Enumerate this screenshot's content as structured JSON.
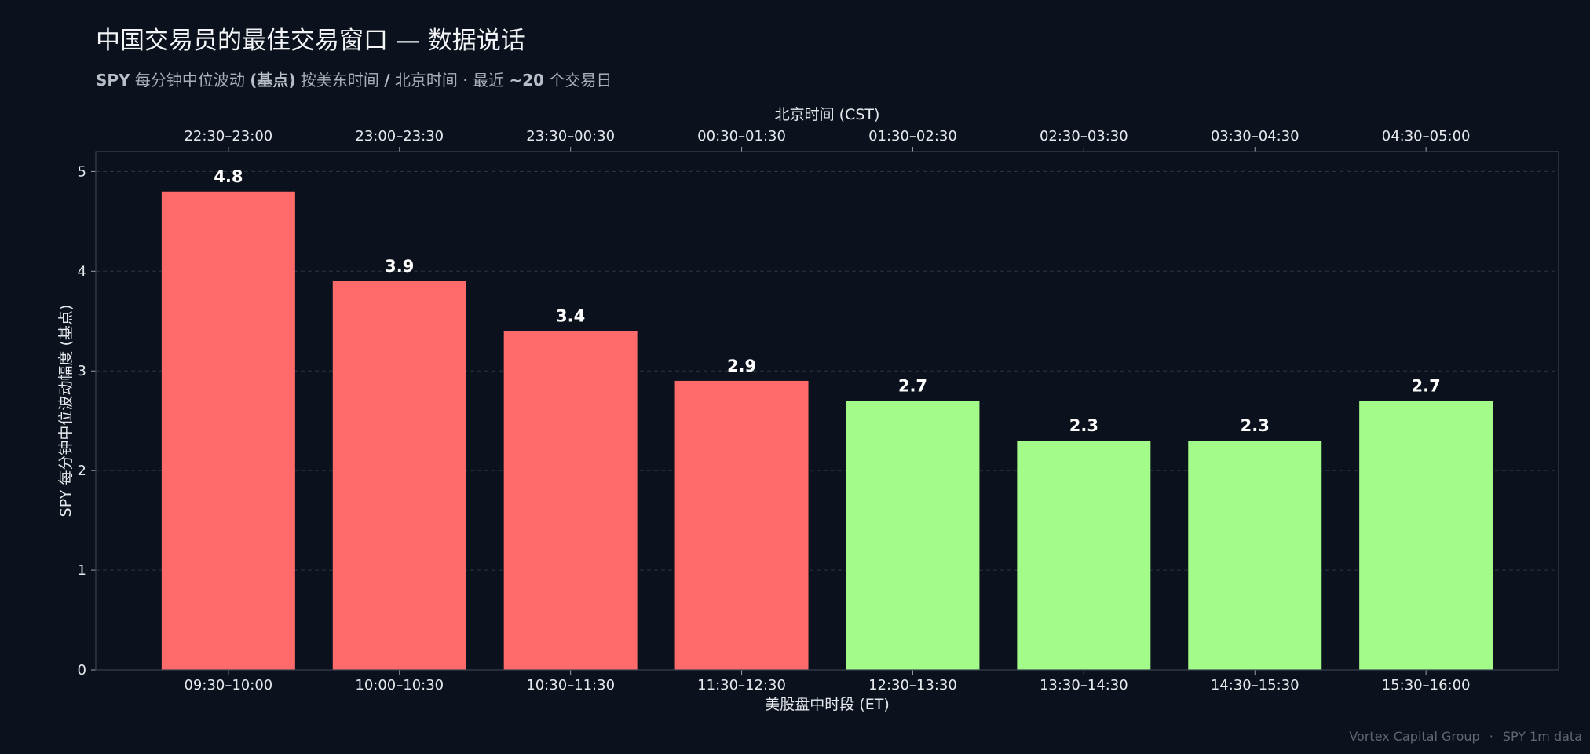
{
  "title": "中国交易员的最佳交易窗口 — 数据说话",
  "subtitle": {
    "ticker": "SPY",
    "text1": " 每分钟中位波动 ",
    "unit": "(基点)",
    "text2": " 按美东时间 ",
    "slash": "/",
    "text3": " 北京时间 · 最近 ",
    "days": "~20",
    "text4": " 个交易日"
  },
  "footer": {
    "source": "Vortex Capital Group",
    "dot": "·",
    "data": "SPY 1m data"
  },
  "colors": {
    "high": "#ff6b6b",
    "low": "#a3fb8a",
    "grid": "#2b3442",
    "axis": "#3a4250",
    "text": "#e6e9ee"
  },
  "chart_data": {
    "type": "bar",
    "xlabel": "美股盘中时段 (ET)",
    "x2label": "北京时间 (CST)",
    "ylabel": "SPY 每分钟中位波动幅度 (基点)",
    "categories": [
      "09:30–10:00",
      "10:00–10:30",
      "10:30–11:30",
      "11:30–12:30",
      "12:30–13:30",
      "13:30–14:30",
      "14:30–15:30",
      "15:30–16:00"
    ],
    "categories_top": [
      "22:30–23:00",
      "23:00–23:30",
      "23:30–00:30",
      "00:30–01:30",
      "01:30–02:30",
      "02:30–03:30",
      "03:30–04:30",
      "04:30–05:00"
    ],
    "values": [
      4.8,
      3.9,
      3.4,
      2.9,
      2.7,
      2.3,
      2.3,
      2.7
    ],
    "value_labels": [
      "4.8",
      "3.9",
      "3.4",
      "2.9",
      "2.7",
      "2.3",
      "2.3",
      "2.7"
    ],
    "bar_colors": [
      "#ff6b6b",
      "#ff6b6b",
      "#ff6b6b",
      "#ff6b6b",
      "#a3fb8a",
      "#a3fb8a",
      "#a3fb8a",
      "#a3fb8a"
    ],
    "yticks": [
      0,
      1,
      2,
      3,
      4,
      5
    ],
    "ylim": [
      0,
      5.2
    ],
    "grid": true,
    "legend": false
  }
}
